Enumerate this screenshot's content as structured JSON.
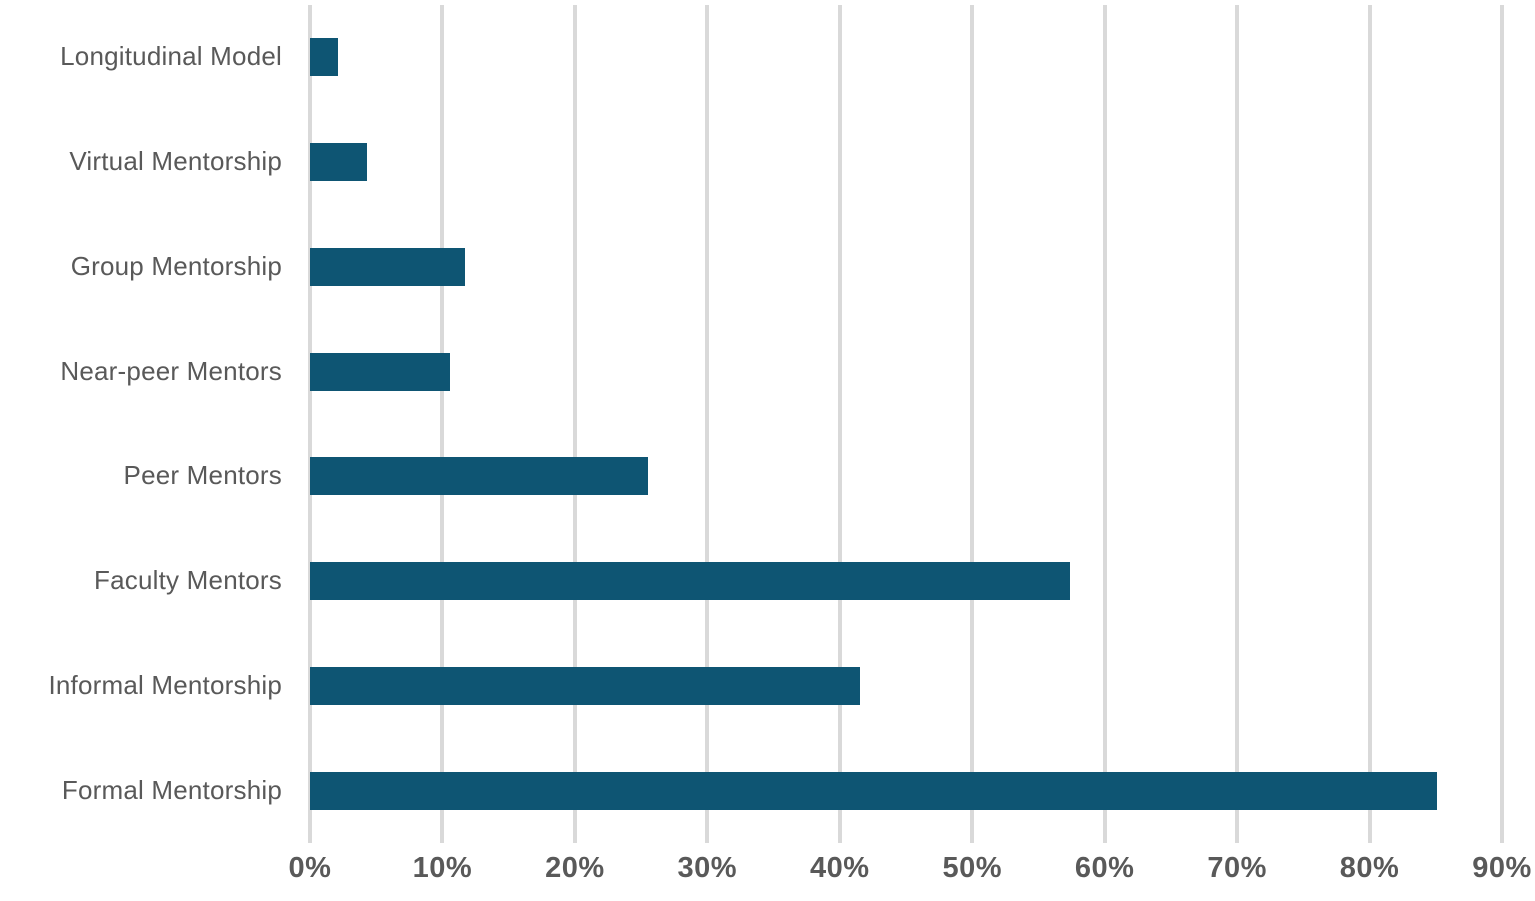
{
  "chart_data": {
    "type": "bar",
    "orientation": "horizontal",
    "title": "",
    "xlabel": "",
    "ylabel": "",
    "categories": [
      "Longitudinal Model",
      "Virtual Mentorship",
      "Group Mentorship",
      "Near-peer Mentors",
      "Peer Mentors",
      "Faculty Mentors",
      "Informal Mentorship",
      "Formal Mentorship"
    ],
    "values": [
      2.1,
      4.3,
      11.7,
      10.6,
      25.5,
      57.4,
      41.5,
      85.1
    ],
    "value_unit": "%",
    "xlim": [
      0,
      90
    ],
    "x_tick_values": [
      0,
      10,
      20,
      30,
      40,
      50,
      60,
      70,
      80,
      90
    ],
    "x_tick_labels": [
      "0%",
      "10%",
      "20%",
      "30%",
      "40%",
      "50%",
      "60%",
      "70%",
      "80%",
      "90%"
    ],
    "grid": "vertical",
    "legend": "none",
    "colors": {
      "bar": "#0e5573",
      "label_text": "#595959",
      "tick_text": "#595959",
      "gridline": "#d9d9d9",
      "background": "#ffffff"
    }
  }
}
